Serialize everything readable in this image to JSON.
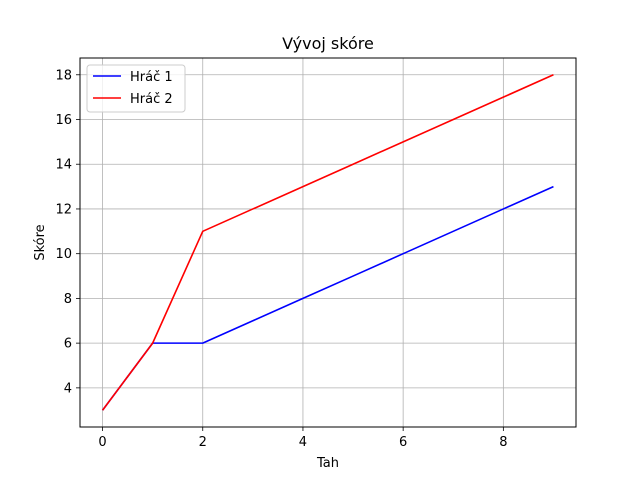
{
  "chart_data": {
    "type": "line",
    "title": "Vývoj skóre",
    "xlabel": "Tah",
    "ylabel": "Skóre",
    "x": [
      0,
      1,
      2,
      3,
      4,
      5,
      6,
      7,
      8,
      9
    ],
    "series": [
      {
        "name": "Hráč 1",
        "color": "#0000ff",
        "values": [
          3,
          6,
          6,
          7,
          8,
          9,
          10,
          11,
          12,
          13
        ]
      },
      {
        "name": "Hráč 2",
        "color": "#ff0000",
        "values": [
          3,
          6,
          11,
          12,
          13,
          14,
          15,
          16,
          17,
          18
        ]
      }
    ],
    "xlim": [
      -0.45,
      9.45
    ],
    "ylim": [
      2.25,
      18.75
    ],
    "xticks": [
      0,
      2,
      4,
      6,
      8
    ],
    "yticks": [
      4,
      6,
      8,
      10,
      12,
      14,
      16,
      18
    ],
    "grid": true,
    "legend": "top-left"
  }
}
